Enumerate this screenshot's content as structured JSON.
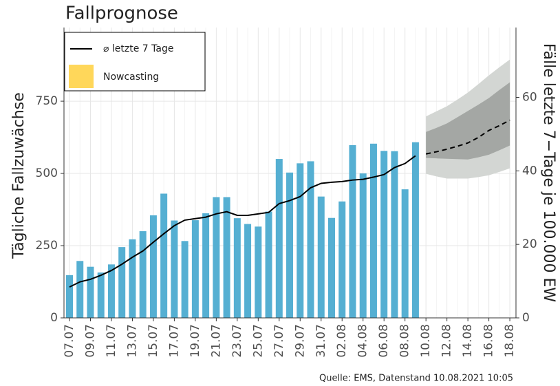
{
  "chart_data": {
    "type": "bar-line-forecast",
    "title": "Fallprognose",
    "y_label": "Tägliche Fallzuwächse",
    "y2_label": "Fälle letzte 7−Tage je 100.000 EW",
    "source": "Quelle: EMS, Datenstand 10.08.2021 10:05",
    "categories": [
      "07.07",
      null,
      "09.07",
      null,
      "11.07",
      null,
      "13.07",
      null,
      "15.07",
      null,
      "17.07",
      null,
      "19.07",
      null,
      "21.07",
      null,
      "23.07",
      null,
      "25.07",
      null,
      "27.07",
      null,
      "29.07",
      null,
      "31.07",
      null,
      "02.08",
      null,
      "04.08",
      null,
      "06.08",
      null,
      "08.08",
      null,
      "10.08",
      null,
      "12.08",
      null,
      "14.08",
      null,
      "16.08",
      null,
      "18.08"
    ],
    "ylim": [
      0,
      1005
    ],
    "yticks": [
      0,
      250,
      500,
      750
    ],
    "y2lim": [
      0,
      79
    ],
    "y2ticks": [
      0,
      20,
      40,
      60
    ],
    "grid": true,
    "bars": {
      "color": "#55afd2",
      "values": [
        148,
        197,
        177,
        157,
        185,
        245,
        272,
        300,
        355,
        430,
        337,
        266,
        338,
        362,
        418,
        418,
        345,
        325,
        316,
        368,
        550,
        503,
        535,
        542,
        420,
        346,
        403,
        598,
        500,
        603,
        578,
        577,
        445,
        608,
        null,
        null,
        null,
        null,
        null,
        null,
        null,
        null,
        null
      ]
    },
    "series": [
      {
        "name": "⌀ letzte 7 Tage",
        "color": "#000000",
        "axis": "y2",
        "values": [
          8.4,
          9.8,
          10.5,
          11.6,
          12.9,
          14.6,
          16.5,
          18.2,
          20.6,
          22.9,
          25.1,
          26.6,
          27.0,
          27.4,
          28.3,
          28.9,
          27.9,
          27.9,
          28.3,
          28.7,
          31.1,
          31.9,
          33.0,
          35.4,
          36.6,
          36.9,
          37.1,
          37.5,
          37.7,
          38.3,
          39.0,
          40.9,
          42.0,
          44.1,
          null,
          null,
          null,
          null,
          null,
          null,
          null,
          null,
          null
        ]
      },
      {
        "name": "Nowcasting",
        "color": "#ffd75a",
        "values": [
          null,
          null,
          null,
          null,
          null,
          null,
          null,
          null,
          null,
          null,
          null,
          null,
          null,
          null,
          null,
          null,
          null,
          null,
          null,
          null,
          null,
          null,
          null,
          null,
          null,
          null,
          null,
          null,
          null,
          null,
          null,
          null,
          null,
          null,
          null,
          null,
          null,
          null,
          null,
          null,
          null,
          null,
          null
        ]
      }
    ],
    "forecast": {
      "color": "#000000",
      "axis": "y2",
      "values": [
        null,
        null,
        null,
        null,
        null,
        null,
        null,
        null,
        null,
        null,
        null,
        null,
        null,
        null,
        null,
        null,
        null,
        null,
        null,
        null,
        null,
        null,
        null,
        null,
        null,
        null,
        null,
        null,
        null,
        null,
        null,
        null,
        null,
        null,
        44.6,
        45.2,
        45.9,
        46.7,
        47.6,
        49.1,
        51.0,
        52.3,
        53.8
      ]
    },
    "bands": [
      {
        "color": "#d3d6d3",
        "upper": [
          null,
          null,
          null,
          null,
          null,
          null,
          null,
          null,
          null,
          null,
          null,
          null,
          null,
          null,
          null,
          null,
          null,
          null,
          null,
          null,
          null,
          null,
          null,
          null,
          null,
          null,
          null,
          null,
          null,
          null,
          null,
          null,
          null,
          null,
          54.8,
          56.2,
          57.6,
          59.4,
          61.3,
          63.6,
          66.0,
          68.2,
          70.3
        ],
        "lower": [
          null,
          null,
          null,
          null,
          null,
          null,
          null,
          null,
          null,
          null,
          null,
          null,
          null,
          null,
          null,
          null,
          null,
          null,
          null,
          null,
          null,
          null,
          null,
          null,
          null,
          null,
          null,
          null,
          null,
          null,
          null,
          null,
          null,
          null,
          39.2,
          38.5,
          37.9,
          37.9,
          37.9,
          38.3,
          38.8,
          39.7,
          40.7
        ]
      },
      {
        "color": "#9b9f9b",
        "upper": [
          null,
          null,
          null,
          null,
          null,
          null,
          null,
          null,
          null,
          null,
          null,
          null,
          null,
          null,
          null,
          null,
          null,
          null,
          null,
          null,
          null,
          null,
          null,
          null,
          null,
          null,
          null,
          null,
          null,
          null,
          null,
          null,
          null,
          null,
          50.6,
          51.7,
          52.9,
          54.6,
          56.3,
          58.0,
          59.8,
          62.0,
          64.1
        ],
        "lower": [
          null,
          null,
          null,
          null,
          null,
          null,
          null,
          null,
          null,
          null,
          null,
          null,
          null,
          null,
          null,
          null,
          null,
          null,
          null,
          null,
          null,
          null,
          null,
          null,
          null,
          null,
          null,
          null,
          null,
          null,
          null,
          null,
          null,
          null,
          43.5,
          43.4,
          43.3,
          43.2,
          43.1,
          43.7,
          44.4,
          45.6,
          46.9
        ]
      }
    ]
  }
}
